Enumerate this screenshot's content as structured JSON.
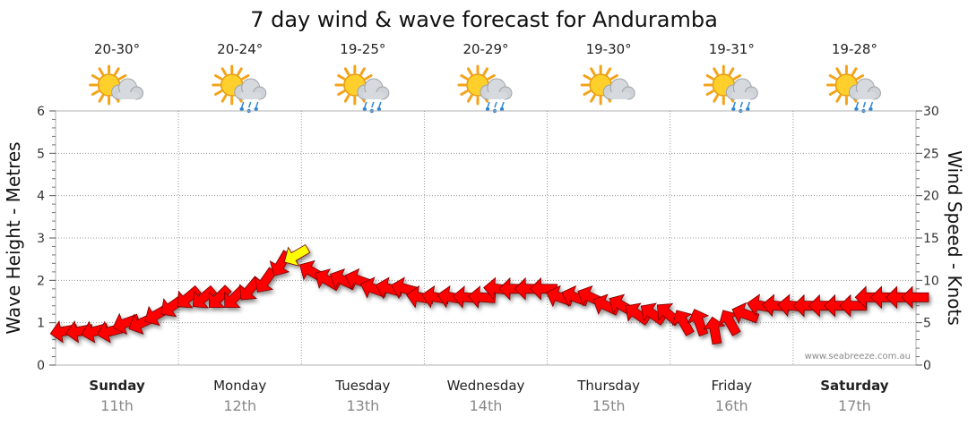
{
  "chart_data": {
    "type": "line",
    "title": "7 day wind & wave forecast for Anduramba",
    "y_left_label": "Wave Height - Metres",
    "y_right_label": "Wind Speed - Knots",
    "y_left_range": [
      0,
      6
    ],
    "y_right_range": [
      0,
      30
    ],
    "y_left_ticks": [
      "0",
      "1",
      "2",
      "3",
      "4",
      "5",
      "6"
    ],
    "y_right_ticks": [
      "0",
      "5",
      "10",
      "15",
      "20",
      "25",
      "30"
    ],
    "grid": true,
    "days": [
      {
        "name": "Sunday",
        "date": "11th",
        "bold": true,
        "temp": "20-30°",
        "weather": "partly-cloudy-icon"
      },
      {
        "name": "Monday",
        "date": "12th",
        "bold": false,
        "temp": "20-24°",
        "weather": "showers-icon"
      },
      {
        "name": "Tuesday",
        "date": "13th",
        "bold": false,
        "temp": "19-25°",
        "weather": "showers-icon"
      },
      {
        "name": "Wednesday",
        "date": "14th",
        "bold": false,
        "temp": "20-29°",
        "weather": "showers-icon"
      },
      {
        "name": "Thursday",
        "date": "15th",
        "bold": false,
        "temp": "19-30°",
        "weather": "partly-cloudy-icon"
      },
      {
        "name": "Friday",
        "date": "16th",
        "bold": false,
        "temp": "19-31°",
        "weather": "showers-icon"
      },
      {
        "name": "Saturday",
        "date": "17th",
        "bold": true,
        "temp": "19-28°",
        "weather": "showers-icon"
      }
    ],
    "wind_series": {
      "name": "Wind Speed",
      "unit": "knots",
      "points_per_day": 8,
      "speeds": [
        4,
        4,
        4,
        4,
        5,
        5,
        6,
        7,
        8,
        8,
        8,
        8,
        9,
        10,
        12,
        13,
        11,
        10,
        10,
        10,
        9,
        9,
        9,
        8,
        8,
        8,
        8,
        8,
        9,
        9,
        9,
        9,
        8,
        8,
        8,
        7,
        7,
        6,
        6,
        6,
        5,
        5,
        4,
        5,
        6,
        7,
        7,
        7,
        7,
        7,
        7,
        7,
        8,
        8,
        8,
        8
      ],
      "directions_deg": [
        80,
        80,
        75,
        75,
        70,
        65,
        60,
        55,
        50,
        50,
        45,
        45,
        40,
        35,
        30,
        60,
        120,
        120,
        115,
        110,
        110,
        105,
        105,
        100,
        100,
        100,
        95,
        95,
        95,
        90,
        90,
        90,
        110,
        110,
        115,
        115,
        120,
        125,
        125,
        130,
        150,
        160,
        170,
        150,
        110,
        100,
        95,
        95,
        90,
        90,
        90,
        90,
        90,
        90,
        90,
        90
      ],
      "strong_threshold": 13,
      "color": "#ff0000",
      "strong_color": "#ffff00"
    },
    "credit": "www.seabreeze.com.au"
  }
}
